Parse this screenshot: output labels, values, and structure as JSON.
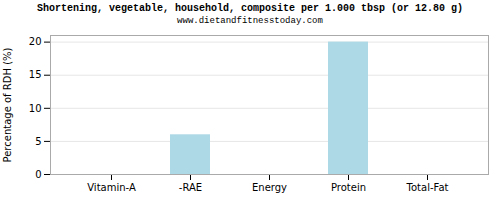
{
  "chart_data": {
    "type": "bar",
    "title": "Shortening, vegetable, household, composite per 1.000 tbsp (or 12.80 g)",
    "subtitle": "www.dietandfitnesstoday.com",
    "categories": [
      "Vitamin-A",
      "-RAE",
      "Energy",
      "Protein",
      "Total-Fat"
    ],
    "values": [
      0,
      6,
      0,
      20,
      0
    ],
    "color": "#add8e6",
    "ylabel": "Percentage of RDH (%)",
    "ylim": [
      0,
      21
    ],
    "yticks": [
      0,
      5,
      10,
      15,
      20
    ],
    "grid": true
  }
}
